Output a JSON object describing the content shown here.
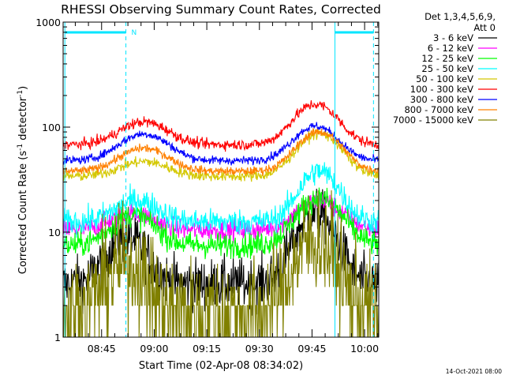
{
  "chart_data": {
    "type": "line",
    "title": "RHESSI Observing Summary Count Rates, Corrected",
    "xlabel": "Start Time (02-Apr-08 08:34:02)",
    "ylabel_main": "Corrected Count Rate (s",
    "ylabel_sup1": "-1",
    "ylabel_mid": " detector",
    "ylabel_sup2": "-1",
    "ylabel_end": ")",
    "y_scale": "log",
    "ylim": [
      1,
      1000
    ],
    "y_ticks": [
      {
        "value": 1,
        "label": "1"
      },
      {
        "value": 10,
        "label": "10"
      },
      {
        "value": 100,
        "label": "100"
      },
      {
        "value": 1000,
        "label": "1000"
      }
    ],
    "xlim_min": [
      0,
      90
    ],
    "x_ticks": [
      {
        "value": 10.97,
        "label": "08:45"
      },
      {
        "value": 25.97,
        "label": "09:00"
      },
      {
        "value": 40.97,
        "label": "09:15"
      },
      {
        "value": 55.97,
        "label": "09:30"
      },
      {
        "value": 70.97,
        "label": "09:45"
      },
      {
        "value": 85.97,
        "label": "10:00"
      }
    ],
    "legend_header": [
      "Det 1,3,4,5,6,9,",
      "Att 0"
    ],
    "legend_position": "right",
    "series": [
      {
        "name": "3 - 6 keV",
        "color": "#000000",
        "base": 3.2,
        "peaks": [
          [
            18,
            9.0,
            7
          ],
          [
            72,
            15,
            7
          ]
        ],
        "noise": 0.12
      },
      {
        "name": "6 - 12 keV",
        "color": "#ff00ff",
        "base": 10.5,
        "peaks": [
          [
            20,
            15,
            8
          ],
          [
            73,
            20,
            8
          ]
        ],
        "noise": 0.05
      },
      {
        "name": "12 - 25 keV",
        "color": "#00ff00",
        "base": 7.5,
        "peaks": [
          [
            20,
            14.5,
            8
          ],
          [
            73,
            21,
            8
          ]
        ],
        "noise": 0.06
      },
      {
        "name": "25 - 50 keV",
        "color": "#00ffff",
        "base": 12.5,
        "peaks": [
          [
            21,
            20,
            8
          ],
          [
            73,
            38,
            7
          ]
        ],
        "noise": 0.06
      },
      {
        "name": "50 - 100 keV",
        "color": "#d4c800",
        "base": 34,
        "peaks": [
          [
            23,
            47,
            9
          ],
          [
            73,
            87,
            8
          ]
        ],
        "noise": 0.025
      },
      {
        "name": "100 - 300 keV",
        "color": "#ff0000",
        "base": 68,
        "peaks": [
          [
            23,
            112,
            9
          ],
          [
            72,
            165,
            8
          ]
        ],
        "noise": 0.025
      },
      {
        "name": "300 - 800 keV",
        "color": "#0000ff",
        "base": 48,
        "peaks": [
          [
            23,
            86,
            9
          ],
          [
            72,
            102,
            8
          ]
        ],
        "noise": 0.02
      },
      {
        "name": "800 - 7000 keV",
        "color": "#ff8000",
        "base": 38,
        "peaks": [
          [
            23,
            63,
            9
          ],
          [
            73,
            90,
            8
          ]
        ],
        "noise": 0.02
      },
      {
        "name": "7000 - 15000 keV",
        "color": "#808000",
        "base": 1.8,
        "peaks": [
          [
            18,
            5.0,
            7
          ],
          [
            72,
            8.5,
            7
          ]
        ],
        "noise": 0.25
      }
    ],
    "annotations": {
      "marker_label": "N",
      "vlines_cyan_dashed_min": [
        17.9,
        88.5
      ],
      "vlines_cyan_solid_min": [
        0.5,
        77.5
      ],
      "top_bars_min": [
        [
          0.5,
          17.9
        ],
        [
          77.5,
          88.5
        ]
      ]
    }
  },
  "footer": {
    "timestamp": "14-Oct-2021 08:00"
  }
}
